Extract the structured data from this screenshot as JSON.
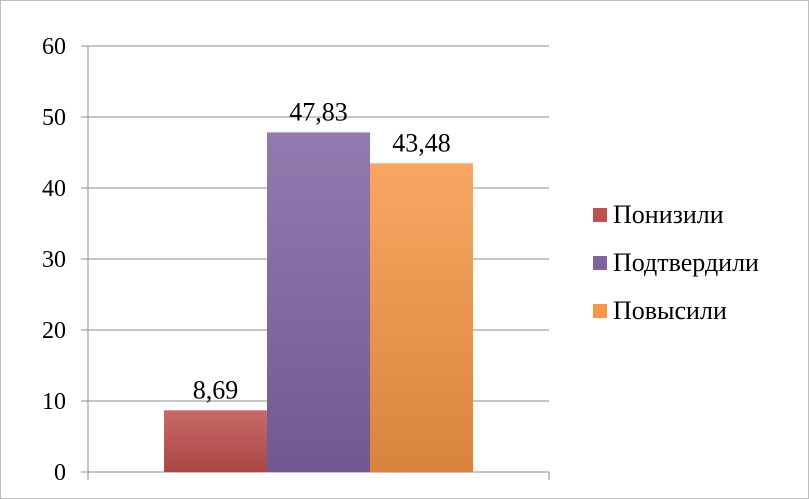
{
  "chart_data": {
    "type": "bar",
    "categories": [
      ""
    ],
    "series": [
      {
        "name": "Понизили",
        "values": [
          8.69
        ],
        "label": "8,69",
        "color": "#c0504d"
      },
      {
        "name": "Подтвердили",
        "values": [
          47.83
        ],
        "label": "47,83",
        "color": "#8064a2"
      },
      {
        "name": "Повысили",
        "values": [
          43.48
        ],
        "label": "43,48",
        "color": "#f79646"
      }
    ],
    "y_ticks": [
      "0",
      "10",
      "20",
      "30",
      "40",
      "50",
      "60"
    ],
    "ylim": [
      0,
      60
    ],
    "title": "",
    "xlabel": "",
    "ylabel": "",
    "grid": true,
    "legend_position": "right"
  }
}
